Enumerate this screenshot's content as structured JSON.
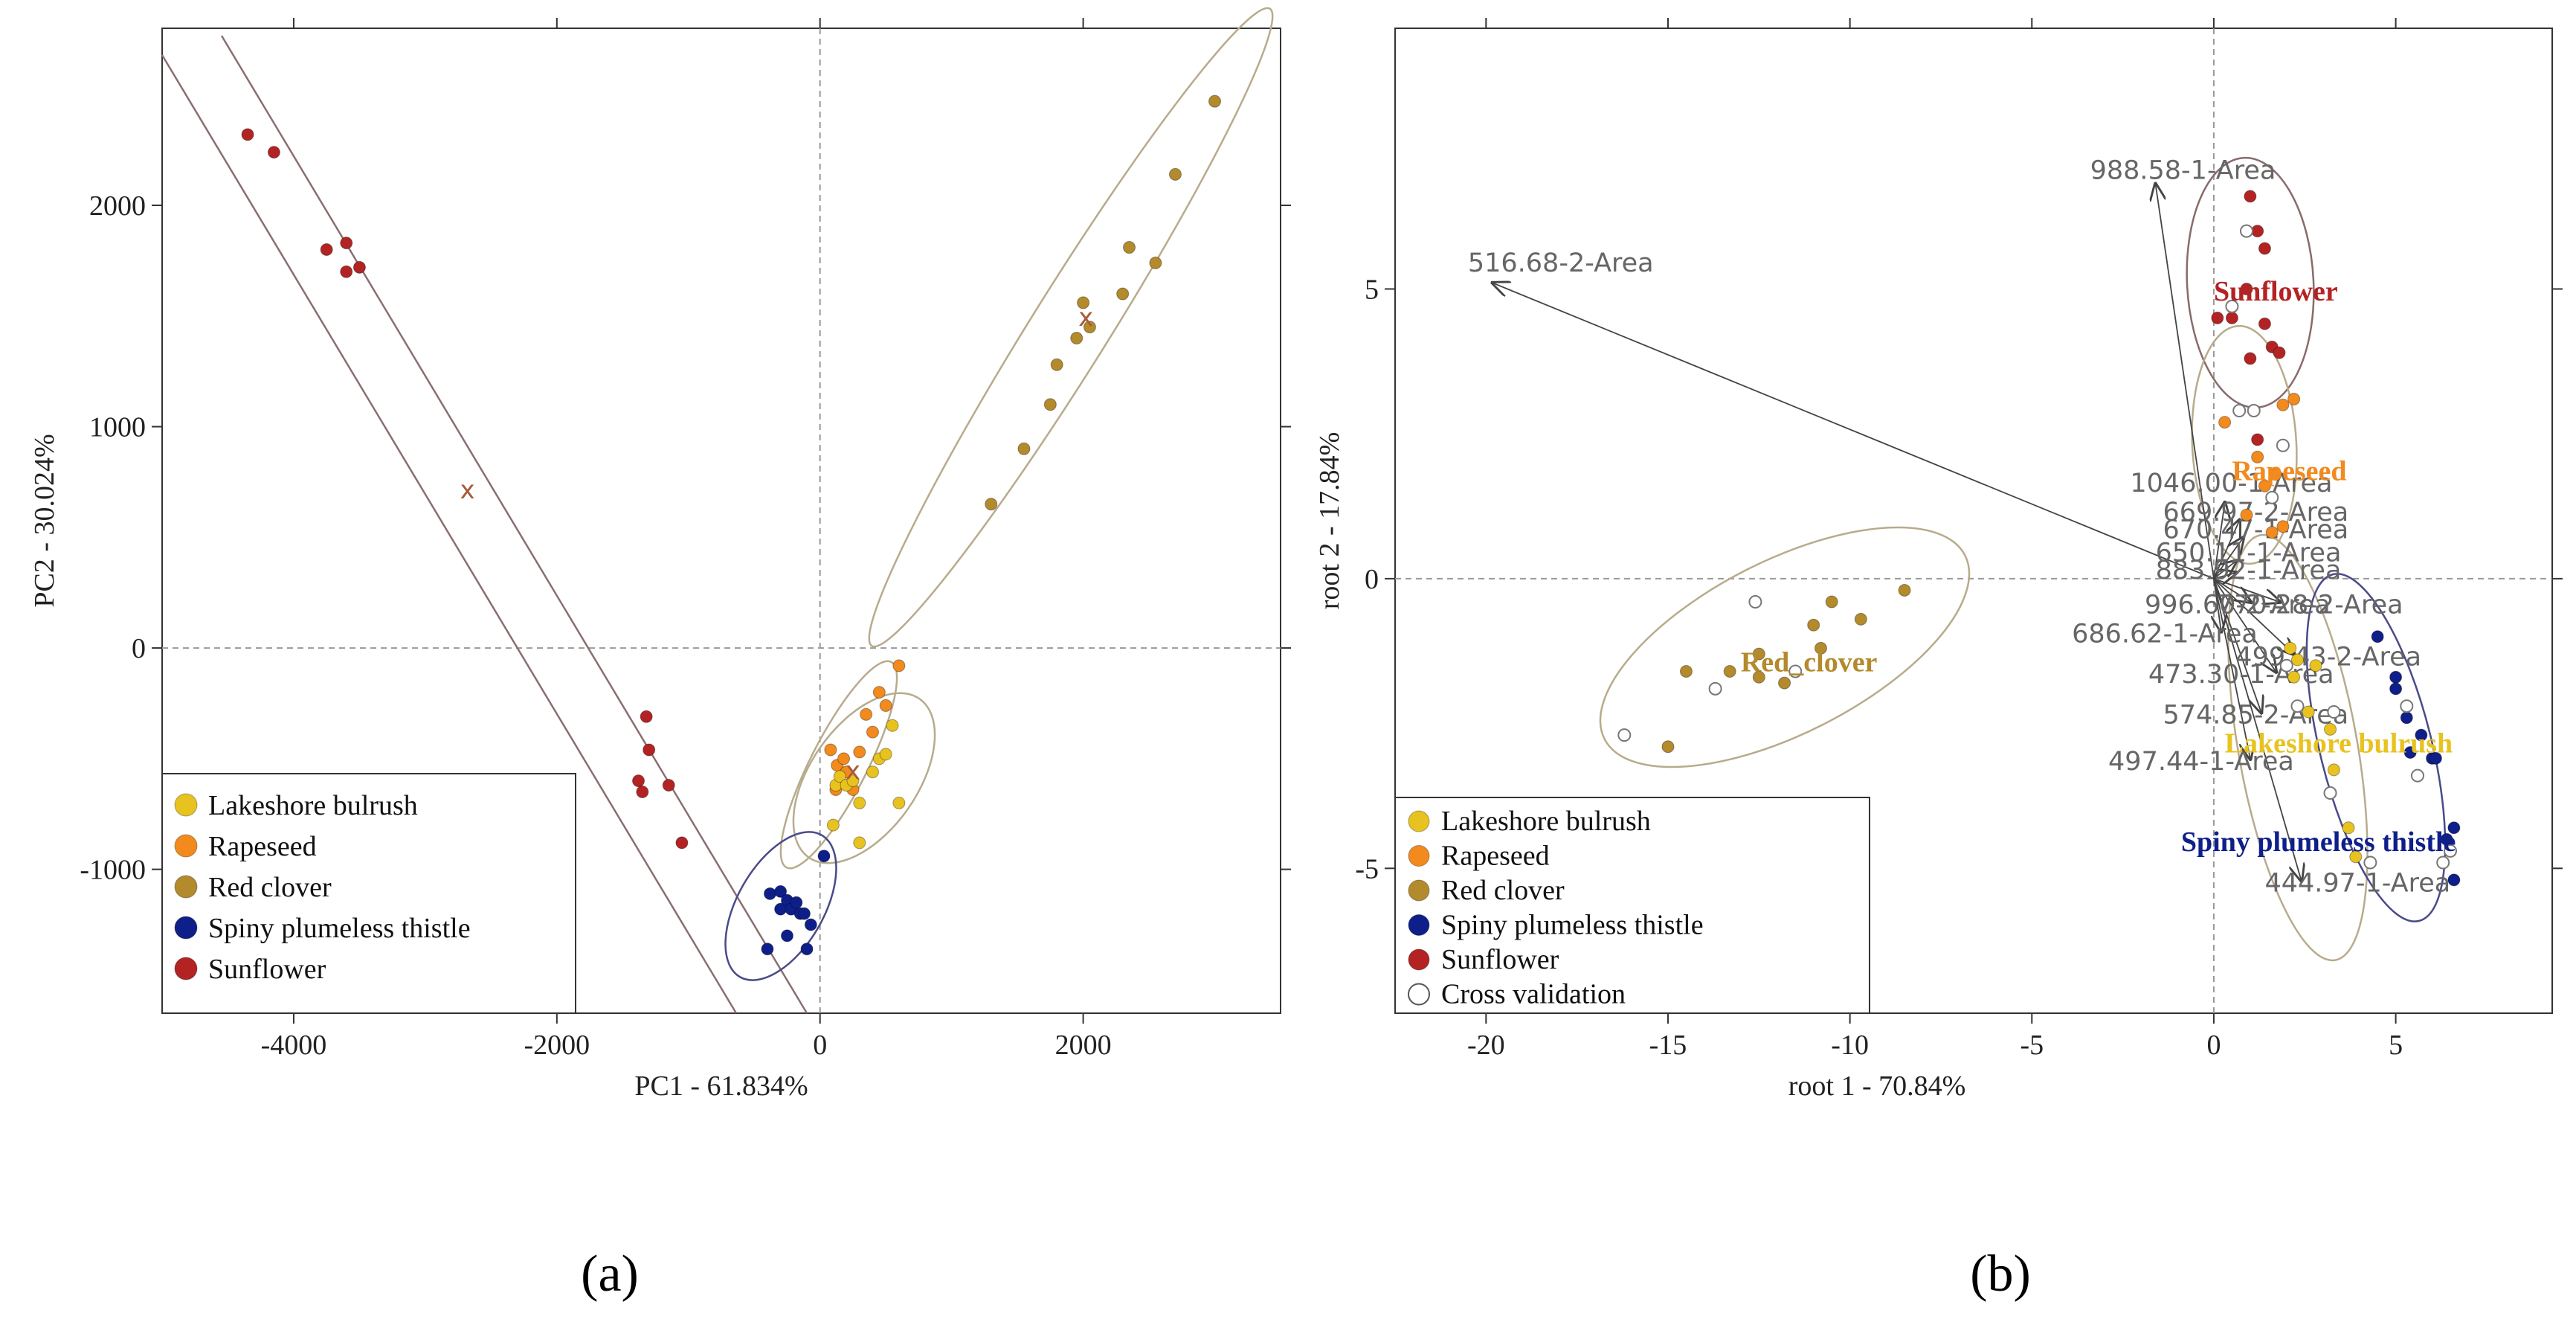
{
  "colors": {
    "Lakeshore bulrush": "#e8c21f",
    "Rapeseed": "#f28a1e",
    "Red clover": "#b38a2c",
    "Spiny plumeless thistle": "#0f1f8a",
    "Sunflower": "#b42323",
    "ellipse_a": "#a08a86",
    "ellipse_b": "#b8ab8c",
    "sunflower_band": "#8c6e70",
    "centroid": "#a85a3a"
  },
  "captions": {
    "a": "(a)",
    "b": "(b)"
  },
  "chart_data": [
    {
      "type": "scatter",
      "title": "",
      "xlabel": "PC1 - 61.834%",
      "ylabel": "PC2 - 30.024%",
      "xlim": [
        -5000,
        3500
      ],
      "ylim": [
        -1650,
        2800
      ],
      "xticks": [
        -4000,
        -2000,
        0,
        2000
      ],
      "yticks": [
        -1000,
        0,
        1000,
        2000
      ],
      "legend": {
        "position": "bottom-left",
        "entries": [
          "Lakeshore bulrush",
          "Rapeseed",
          "Red clover",
          "Spiny plumeless thistle",
          "Sunflower"
        ]
      },
      "series": [
        {
          "name": "Sunflower",
          "points": [
            [
              -4350,
              2320
            ],
            [
              -4150,
              2240
            ],
            [
              -3750,
              1800
            ],
            [
              -3600,
              1830
            ],
            [
              -3600,
              1700
            ],
            [
              -3500,
              1720
            ],
            [
              -1320,
              -310
            ],
            [
              -1300,
              -460
            ],
            [
              -1380,
              -600
            ],
            [
              -1350,
              -650
            ],
            [
              -1150,
              -620
            ],
            [
              -1050,
              -880
            ]
          ]
        },
        {
          "name": "Red clover",
          "points": [
            [
              1300,
              650
            ],
            [
              1550,
              900
            ],
            [
              1750,
              1100
            ],
            [
              1800,
              1280
            ],
            [
              1950,
              1400
            ],
            [
              2000,
              1560
            ],
            [
              2050,
              1450
            ],
            [
              2300,
              1600
            ],
            [
              2350,
              1810
            ],
            [
              2550,
              1740
            ],
            [
              2700,
              2140
            ],
            [
              3000,
              2470
            ]
          ]
        },
        {
          "name": "Rapeseed",
          "points": [
            [
              80,
              -460
            ],
            [
              120,
              -640
            ],
            [
              130,
              -530
            ],
            [
              180,
              -500
            ],
            [
              200,
              -560
            ],
            [
              250,
              -640
            ],
            [
              300,
              -470
            ],
            [
              350,
              -300
            ],
            [
              400,
              -380
            ],
            [
              450,
              -200
            ],
            [
              500,
              -260
            ],
            [
              600,
              -80
            ]
          ]
        },
        {
          "name": "Lakeshore bulrush",
          "points": [
            [
              120,
              -620
            ],
            [
              150,
              -580
            ],
            [
              200,
              -620
            ],
            [
              250,
              -600
            ],
            [
              300,
              -700
            ],
            [
              400,
              -560
            ],
            [
              450,
              -500
            ],
            [
              500,
              -480
            ],
            [
              550,
              -350
            ],
            [
              100,
              -800
            ],
            [
              600,
              -700
            ],
            [
              300,
              -880
            ]
          ]
        },
        {
          "name": "Spiny plumeless thistle",
          "points": [
            [
              -380,
              -1110
            ],
            [
              -300,
              -1100
            ],
            [
              -300,
              -1180
            ],
            [
              -250,
              -1140
            ],
            [
              -220,
              -1180
            ],
            [
              -180,
              -1150
            ],
            [
              -150,
              -1200
            ],
            [
              -120,
              -1200
            ],
            [
              -70,
              -1250
            ],
            [
              -250,
              -1300
            ],
            [
              -100,
              -1360
            ],
            [
              -400,
              -1360
            ],
            [
              30,
              -940
            ]
          ]
        }
      ],
      "centroids": [
        {
          "group": "Sunflower",
          "x": -2680,
          "y": 710,
          "label": "x"
        },
        {
          "group": "Red clover",
          "x": 2020,
          "y": 1490,
          "label": "x"
        },
        {
          "group": "Rapeseed",
          "x": 250,
          "y": -560,
          "label": "x"
        }
      ]
    },
    {
      "type": "scatter",
      "title": "",
      "xlabel": "root 1 - 70.84%",
      "ylabel": "root 2 - 17.84%",
      "xlim": [
        -22.5,
        9.3
      ],
      "ylim": [
        -7.5,
        9.5
      ],
      "xticks": [
        -20,
        -15,
        -10,
        -5,
        0,
        5
      ],
      "yticks": [
        -5,
        0,
        5
      ],
      "legend": {
        "position": "bottom-left",
        "entries": [
          "Lakeshore bulrush",
          "Rapeseed",
          "Red clover",
          "Spiny plumeless thistle",
          "Sunflower",
          "Cross validation"
        ]
      },
      "series": [
        {
          "name": "Red clover",
          "points": [
            [
              -15,
              -2.9
            ],
            [
              -14.5,
              -1.6
            ],
            [
              -13.3,
              -1.6
            ],
            [
              -12.5,
              -1.3
            ],
            [
              -12.5,
              -1.7
            ],
            [
              -11.8,
              -1.8
            ],
            [
              -11,
              -0.8
            ],
            [
              -10.8,
              -1.2
            ],
            [
              -10.5,
              -0.4
            ],
            [
              -9.7,
              -0.7
            ],
            [
              -8.5,
              -0.2
            ]
          ]
        },
        {
          "name": "Sunflower",
          "points": [
            [
              0.1,
              4.5
            ],
            [
              0.5,
              4.5
            ],
            [
              0.9,
              5.0
            ],
            [
              1.0,
              6.6
            ],
            [
              1.0,
              3.8
            ],
            [
              1.2,
              6.0
            ],
            [
              1.4,
              4.4
            ],
            [
              1.4,
              5.7
            ],
            [
              1.6,
              4.0
            ],
            [
              1.8,
              3.9
            ],
            [
              1.2,
              2.4
            ]
          ]
        },
        {
          "name": "Rapeseed",
          "points": [
            [
              0.3,
              2.7
            ],
            [
              0.9,
              1.1
            ],
            [
              1.2,
              2.1
            ],
            [
              1.4,
              1.6
            ],
            [
              1.6,
              0.8
            ],
            [
              1.9,
              0.9
            ],
            [
              1.7,
              1.8
            ],
            [
              2.2,
              3.1
            ],
            [
              1.9,
              3.0
            ]
          ]
        },
        {
          "name": "Lakeshore bulrush",
          "points": [
            [
              2.1,
              -1.2
            ],
            [
              2.2,
              -1.7
            ],
            [
              2.3,
              -1.4
            ],
            [
              2.8,
              -1.5
            ],
            [
              2.6,
              -2.3
            ],
            [
              3.2,
              -2.6
            ],
            [
              3.3,
              -3.3
            ],
            [
              3.7,
              -4.3
            ],
            [
              3.9,
              -4.8
            ]
          ]
        },
        {
          "name": "Spiny plumeless thistle",
          "points": [
            [
              4.5,
              -1.0
            ],
            [
              5,
              -1.7
            ],
            [
              5.0,
              -1.9
            ],
            [
              5.3,
              -2.4
            ],
            [
              5.4,
              -3.0
            ],
            [
              5.7,
              -2.7
            ],
            [
              6,
              -3.1
            ],
            [
              6.1,
              -3.1
            ],
            [
              6.4,
              -4.5
            ],
            [
              6.6,
              -4.3
            ],
            [
              6.6,
              -5.2
            ]
          ]
        },
        {
          "name": "Cross validation",
          "points": [
            [
              -16.2,
              -2.7
            ],
            [
              -12.6,
              -0.4
            ],
            [
              -13.7,
              -1.9
            ],
            [
              -11.5,
              -1.6
            ],
            [
              0.5,
              4.7
            ],
            [
              0.9,
              6.0
            ],
            [
              1.1,
              2.9
            ],
            [
              1.6,
              1.4
            ],
            [
              1.9,
              2.3
            ],
            [
              0.7,
              2.9
            ],
            [
              2.0,
              -1.5
            ],
            [
              2.3,
              -2.2
            ],
            [
              3.3,
              -2.3
            ],
            [
              4.3,
              -4.9
            ],
            [
              3.2,
              -3.7
            ],
            [
              5.3,
              -2.2
            ],
            [
              5.6,
              -3.4
            ],
            [
              6.3,
              -4.9
            ],
            [
              6.5,
              -4.7
            ]
          ]
        }
      ],
      "group_labels": [
        {
          "text": "Sunflower",
          "group": "Sunflower",
          "x": 0.0,
          "y": 4.8
        },
        {
          "text": "Rapeseed",
          "group": "Rapeseed",
          "x": 0.5,
          "y": 1.7
        },
        {
          "text": "Red_clover",
          "group": "Red clover",
          "x": -13.0,
          "y": -1.6
        },
        {
          "text": "Lakeshore bulrush",
          "group": "Lakeshore bulrush",
          "x": 0.3,
          "y": -3.0
        },
        {
          "text": "Spiny plumeless thistle",
          "group": "Spiny plumeless thistle",
          "x": -0.9,
          "y": -4.7
        }
      ],
      "loadings": [
        {
          "label": "988.58-1-Area",
          "x": -1.6,
          "y": 6.8,
          "tx": -3.4,
          "ty": 6.9
        },
        {
          "label": "516.68-2-Area",
          "x": -19.8,
          "y": 5.1,
          "tx": -20.5,
          "ty": 5.3
        },
        {
          "label": "1046.00-1-Area",
          "x": 0.3,
          "y": 1.3,
          "tx": -2.3,
          "ty": 1.5
        },
        {
          "label": "669.97-2-Area",
          "x": 0.7,
          "y": 1.0,
          "tx": -1.4,
          "ty": 1.0
        },
        {
          "label": "670.47-1-Area",
          "x": 0.8,
          "y": 0.7,
          "tx": -1.4,
          "ty": 0.7
        },
        {
          "label": "650.11-1-Area",
          "x": 0.6,
          "y": 0.3,
          "tx": -1.6,
          "ty": 0.3
        },
        {
          "label": "883.92-1-Area",
          "x": 0.6,
          "y": 0.1,
          "tx": -1.6,
          "ty": 0.0
        },
        {
          "label": "996.60-2-Area",
          "x": 1.0,
          "y": -0.4,
          "tx": -1.9,
          "ty": -0.6
        },
        {
          "label": "770.28-2-Area",
          "x": 1.8,
          "y": -0.4,
          "tx": 0.1,
          "ty": -0.6
        },
        {
          "label": "686.62-1-Area",
          "x": 0.2,
          "y": -0.9,
          "tx": -3.9,
          "ty": -1.1
        },
        {
          "label": "499.43-2-Area",
          "x": 2.2,
          "y": -1.3,
          "tx": 0.6,
          "ty": -1.5
        },
        {
          "label": "473.30-1-Area",
          "x": 1.7,
          "y": -1.6,
          "tx": -1.8,
          "ty": -1.8
        },
        {
          "label": "574.85-2-Area",
          "x": 1.3,
          "y": -2.3,
          "tx": -1.4,
          "ty": -2.5
        },
        {
          "label": "497.44-1-Area",
          "x": 1.0,
          "y": -3.1,
          "tx": -2.9,
          "ty": -3.3
        },
        {
          "label": "444.97-1-Area",
          "x": 2.4,
          "y": -5.2,
          "tx": 1.4,
          "ty": -5.4
        }
      ]
    }
  ]
}
